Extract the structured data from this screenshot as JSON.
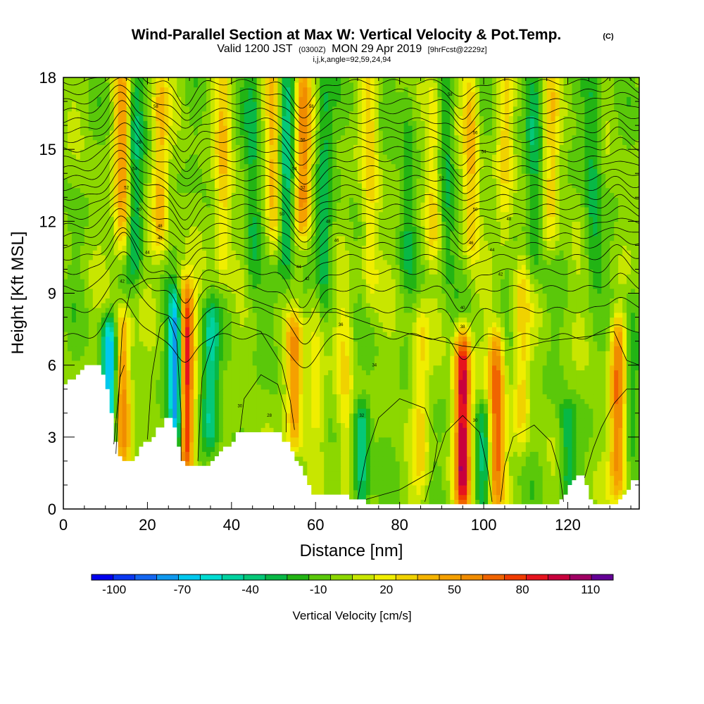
{
  "header": {
    "title": "Wind-Parallel Section at Max W: Vertical Velocity & Pot.Temp.",
    "copyright": "(C)",
    "valid_prefix": "Valid 1200 JST",
    "valid_utc": "(0300Z)",
    "valid_date": "MON 29 Apr 2019",
    "forecast": "[9hrFcst@2229z]",
    "grid_info": "i,j,k,angle=92,59,24,94"
  },
  "colors": {
    "terrain": "#ffffff",
    "contour": "#000000",
    "frame": "#000000"
  },
  "chart_data": {
    "type": "heatmap",
    "xlabel": "Distance [nm]",
    "ylabel": "Height [Kft MSL]",
    "xlim": [
      0,
      137
    ],
    "ylim": [
      0,
      18
    ],
    "x_ticks": [
      0,
      20,
      40,
      60,
      80,
      100,
      120
    ],
    "x_tick_labels": [
      "0",
      "20",
      "40",
      "60",
      "80",
      "100",
      "120"
    ],
    "y_ticks": [
      0,
      3,
      6,
      9,
      12,
      15,
      18
    ],
    "y_tick_labels": [
      "0",
      "3",
      "6",
      "9",
      "12",
      "15",
      "18"
    ],
    "colorbar": {
      "label": "Vertical Velocity [cm/s]",
      "levels": [
        -110,
        -100,
        -90,
        -80,
        -70,
        -60,
        -50,
        -40,
        -30,
        -20,
        -10,
        0,
        10,
        20,
        30,
        40,
        50,
        60,
        70,
        80,
        90,
        100,
        110,
        120
      ],
      "colors": [
        "#0000ee",
        "#0a37f0",
        "#1466f0",
        "#0f98ee",
        "#00c8ee",
        "#00dcd2",
        "#00d2a0",
        "#05c878",
        "#08b846",
        "#22b414",
        "#5ac80a",
        "#8cd700",
        "#c8e600",
        "#f0ee00",
        "#f0d200",
        "#f5b400",
        "#f5a000",
        "#f08c00",
        "#f06400",
        "#f03c00",
        "#e6141e",
        "#c8003c",
        "#a00064",
        "#640096"
      ],
      "tick_values": [
        -100,
        -70,
        -40,
        -10,
        20,
        50,
        80,
        110
      ],
      "tick_labels": [
        "-100",
        "-70",
        "-40",
        "-10",
        "20",
        "50",
        "80",
        "110"
      ]
    },
    "field": {
      "background_cm_s": 3,
      "features": [
        {
          "x": 11.0,
          "z_top": 7.5,
          "z_bot": 2.5,
          "w": -80
        },
        {
          "x": 14.0,
          "z_top": 7.8,
          "z_bot": 2.2,
          "w": 65
        },
        {
          "x": 14.0,
          "z_top": 18.0,
          "z_bot": 11.0,
          "w": 55
        },
        {
          "x": 17.0,
          "z_top": 18.0,
          "z_bot": 10.0,
          "w": -35
        },
        {
          "x": 23.0,
          "z_top": 18.0,
          "z_bot": 11.0,
          "w": 40
        },
        {
          "x": 27.0,
          "z_top": 8.5,
          "z_bot": 2.5,
          "w": -100
        },
        {
          "x": 29.0,
          "z_top": 9.0,
          "z_bot": 1.8,
          "w": 110
        },
        {
          "x": 35.0,
          "z_top": 8.0,
          "z_bot": 3.0,
          "w": -45
        },
        {
          "x": 38.0,
          "z_top": 18.0,
          "z_bot": 10.0,
          "w": 35
        },
        {
          "x": 45.0,
          "z_top": 18.0,
          "z_bot": 9.0,
          "w": -25
        },
        {
          "x": 50.0,
          "z_top": 18.0,
          "z_bot": 11.0,
          "w": 40
        },
        {
          "x": 53.0,
          "z_top": 18.0,
          "z_bot": 10.0,
          "w": -40
        },
        {
          "x": 55.0,
          "z_top": 7.5,
          "z_bot": 3.0,
          "w": 55
        },
        {
          "x": 57.0,
          "z_top": 18.0,
          "z_bot": 12.0,
          "w": 65
        },
        {
          "x": 60.0,
          "z_top": 9.0,
          "z_bot": 3.5,
          "w": 25
        },
        {
          "x": 62.0,
          "z_top": 18.0,
          "z_bot": 9.0,
          "w": -30
        },
        {
          "x": 67.0,
          "z_top": 8.0,
          "z_bot": 1.0,
          "w": 25
        },
        {
          "x": 71.0,
          "z_top": 4.0,
          "z_bot": 0.3,
          "w": -45
        },
        {
          "x": 73.0,
          "z_top": 18.0,
          "z_bot": 9.0,
          "w": 30
        },
        {
          "x": 82.0,
          "z_top": 18.0,
          "z_bot": 10.0,
          "w": -20
        },
        {
          "x": 85.0,
          "z_top": 8.0,
          "z_bot": 1.0,
          "w": 30
        },
        {
          "x": 88.0,
          "z_top": 18.0,
          "z_bot": 11.0,
          "w": 30
        },
        {
          "x": 91.0,
          "z_top": 18.0,
          "z_bot": 10.0,
          "w": -25
        },
        {
          "x": 95.0,
          "z_top": 7.0,
          "z_bot": 0.5,
          "w": 105
        },
        {
          "x": 97.0,
          "z_top": 18.0,
          "z_bot": 11.0,
          "w": 40
        },
        {
          "x": 100.0,
          "z_top": 4.0,
          "z_bot": 0.5,
          "w": -30
        },
        {
          "x": 103.0,
          "z_top": 7.0,
          "z_bot": 0.5,
          "w": 75
        },
        {
          "x": 105.0,
          "z_top": 18.0,
          "z_bot": 11.0,
          "w": 25
        },
        {
          "x": 109.0,
          "z_top": 10.0,
          "z_bot": 3.0,
          "w": 30
        },
        {
          "x": 112.0,
          "z_top": 18.0,
          "z_bot": 10.0,
          "w": -25
        },
        {
          "x": 116.0,
          "z_top": 18.0,
          "z_bot": 11.0,
          "w": 30
        },
        {
          "x": 120.0,
          "z_top": 4.0,
          "z_bot": 1.0,
          "w": -30
        },
        {
          "x": 126.0,
          "z_top": 18.0,
          "z_bot": 10.0,
          "w": -25
        },
        {
          "x": 132.0,
          "z_top": 7.5,
          "z_bot": 1.0,
          "w": 70
        },
        {
          "x": 135.0,
          "z_top": 9.0,
          "z_bot": 3.0,
          "w": -25
        }
      ]
    },
    "terrain_profile": [
      [
        0,
        5.2
      ],
      [
        2,
        5.4
      ],
      [
        5,
        5.9
      ],
      [
        9,
        5.9
      ],
      [
        10,
        5.2
      ],
      [
        11,
        4.8
      ],
      [
        12,
        3.3
      ],
      [
        13,
        2.4
      ],
      [
        14,
        2.0
      ],
      [
        17,
        2.0
      ],
      [
        18,
        2.2
      ],
      [
        19,
        2.8
      ],
      [
        20,
        3.0
      ],
      [
        21,
        2.8
      ],
      [
        22,
        3.3
      ],
      [
        24,
        3.5
      ],
      [
        25,
        3.9
      ],
      [
        27,
        3.2
      ],
      [
        28,
        2.0
      ],
      [
        30,
        1.8
      ],
      [
        31,
        1.6
      ],
      [
        32,
        1.9
      ],
      [
        35,
        1.9
      ],
      [
        37,
        2.2
      ],
      [
        40,
        2.8
      ],
      [
        42,
        3.2
      ],
      [
        45,
        3.3
      ],
      [
        51,
        3.3
      ],
      [
        52,
        3.0
      ],
      [
        54,
        2.6
      ],
      [
        56,
        1.9
      ],
      [
        58,
        1.2
      ],
      [
        59,
        0.8
      ],
      [
        60,
        0.6
      ],
      [
        62,
        0.5
      ],
      [
        68,
        0.5
      ],
      [
        70,
        0.4
      ],
      [
        72,
        0.3
      ],
      [
        118,
        0.3
      ],
      [
        119,
        0.5
      ],
      [
        120,
        0.9
      ],
      [
        122,
        1.3
      ],
      [
        124,
        1.3
      ],
      [
        125,
        0.6
      ],
      [
        126,
        0.3
      ],
      [
        130,
        0.3
      ],
      [
        132,
        0.3
      ],
      [
        133,
        0.6
      ],
      [
        136,
        1.2
      ],
      [
        137,
        1.2
      ]
    ],
    "theta_contours": {
      "level_heights_kft": [
        7.2,
        8.3,
        9.2,
        9.9,
        10.5,
        11.0,
        11.4,
        11.8,
        12.2,
        12.6,
        13.0,
        13.4,
        13.8,
        14.2,
        14.6,
        15.0,
        15.4,
        15.8,
        16.2,
        16.6,
        17.0,
        17.4,
        17.8
      ],
      "ripples": [
        {
          "x": 14,
          "amp": 1.6,
          "width": 4
        },
        {
          "x": 29,
          "amp": -1.2,
          "width": 3
        },
        {
          "x": 57,
          "amp": -1.4,
          "width": 4
        },
        {
          "x": 95,
          "amp": -0.9,
          "width": 3
        },
        {
          "x": 132,
          "amp": 0.6,
          "width": 3
        }
      ],
      "low_contours": [
        [
          [
            12.5,
            2.3
          ],
          [
            14,
            7.5
          ],
          [
            16,
            9.2
          ],
          [
            20,
            9.6
          ],
          [
            30,
            9.7
          ],
          [
            38,
            9.4
          ],
          [
            44,
            8.8
          ],
          [
            50,
            8.4
          ],
          [
            56,
            8.2
          ],
          [
            65,
            8.2
          ],
          [
            75,
            7.6
          ],
          [
            85,
            7.2
          ],
          [
            95,
            6.8
          ],
          [
            105,
            6.6
          ],
          [
            115,
            7.0
          ],
          [
            125,
            7.2
          ],
          [
            131,
            7.4
          ],
          [
            134,
            6.2
          ],
          [
            137,
            6.0
          ]
        ],
        [
          [
            12,
            2.7
          ],
          [
            13.5,
            5.5
          ],
          [
            14.5,
            6.0
          ]
        ],
        [
          [
            20,
            2.9
          ],
          [
            21,
            5.5
          ],
          [
            23,
            7.6
          ],
          [
            25,
            8.0
          ],
          [
            27,
            7.0
          ],
          [
            28,
            4.0
          ],
          [
            28,
            2.0
          ]
        ],
        [
          [
            32,
            2.0
          ],
          [
            33,
            5.5
          ],
          [
            36,
            7.2
          ],
          [
            40,
            7.8
          ],
          [
            47,
            7.4
          ],
          [
            52,
            6.0
          ],
          [
            54,
            4.5
          ],
          [
            55,
            3.3
          ]
        ],
        [
          [
            42,
            3.2
          ],
          [
            43,
            4.6
          ],
          [
            47,
            5.6
          ],
          [
            51,
            5.2
          ],
          [
            53,
            4.0
          ],
          [
            53,
            3.2
          ]
        ],
        [
          [
            70,
            0.4
          ],
          [
            72,
            2.2
          ],
          [
            75,
            3.8
          ],
          [
            80,
            4.6
          ],
          [
            86,
            4.2
          ],
          [
            89,
            2.8
          ],
          [
            88,
            1.6
          ],
          [
            80,
            0.8
          ],
          [
            72,
            0.4
          ]
        ],
        [
          [
            86,
            0.3
          ],
          [
            88,
            1.6
          ],
          [
            91,
            3.2
          ],
          [
            95,
            3.9
          ],
          [
            99,
            3.2
          ],
          [
            101,
            1.6
          ],
          [
            102,
            0.3
          ]
        ],
        [
          [
            104,
            0.3
          ],
          [
            105,
            1.8
          ],
          [
            107,
            3.0
          ],
          [
            112,
            3.5
          ],
          [
            116,
            2.8
          ],
          [
            118,
            1.6
          ],
          [
            119,
            0.3
          ]
        ],
        [
          [
            124,
            1.3
          ],
          [
            126,
            2.5
          ],
          [
            128,
            3.4
          ],
          [
            131,
            4.4
          ],
          [
            134,
            5.0
          ],
          [
            137,
            5.0
          ]
        ]
      ]
    },
    "contour_labels": [
      {
        "x": 22,
        "z": 16.8,
        "text": "58"
      },
      {
        "x": 18,
        "z": 15.3,
        "text": "56"
      },
      {
        "x": 17,
        "z": 14.2,
        "text": "54"
      },
      {
        "x": 15,
        "z": 13.4,
        "text": "52"
      },
      {
        "x": 18,
        "z": 12.5,
        "text": "50"
      },
      {
        "x": 23,
        "z": 11.8,
        "text": "48"
      },
      {
        "x": 23,
        "z": 11.3,
        "text": "46"
      },
      {
        "x": 20,
        "z": 10.7,
        "text": "44"
      },
      {
        "x": 14,
        "z": 9.5,
        "text": "42"
      },
      {
        "x": 59,
        "z": 16.8,
        "text": "58"
      },
      {
        "x": 57,
        "z": 15.4,
        "text": "56"
      },
      {
        "x": 55,
        "z": 14.2,
        "text": "54"
      },
      {
        "x": 57,
        "z": 13.4,
        "text": "52"
      },
      {
        "x": 52,
        "z": 12.3,
        "text": "50"
      },
      {
        "x": 63,
        "z": 12.0,
        "text": "48"
      },
      {
        "x": 65,
        "z": 11.2,
        "text": "46"
      },
      {
        "x": 56,
        "z": 10.1,
        "text": "44"
      },
      {
        "x": 58,
        "z": 9.6,
        "text": "42"
      },
      {
        "x": 92,
        "z": 17.3,
        "text": "58"
      },
      {
        "x": 98,
        "z": 15.7,
        "text": "56"
      },
      {
        "x": 100,
        "z": 14.9,
        "text": "54"
      },
      {
        "x": 90,
        "z": 13.8,
        "text": "52"
      },
      {
        "x": 98,
        "z": 12.5,
        "text": "50"
      },
      {
        "x": 106,
        "z": 12.1,
        "text": "48"
      },
      {
        "x": 97,
        "z": 11.1,
        "text": "46"
      },
      {
        "x": 102,
        "z": 10.8,
        "text": "44"
      },
      {
        "x": 104,
        "z": 9.8,
        "text": "42"
      },
      {
        "x": 95,
        "z": 8.4,
        "text": "40"
      },
      {
        "x": 95,
        "z": 7.6,
        "text": "38"
      },
      {
        "x": 66,
        "z": 7.7,
        "text": "36"
      },
      {
        "x": 74,
        "z": 6.0,
        "text": "34"
      },
      {
        "x": 71,
        "z": 3.9,
        "text": "32"
      },
      {
        "x": 42,
        "z": 4.3,
        "text": "30"
      },
      {
        "x": 49,
        "z": 3.9,
        "text": "28"
      },
      {
        "x": 98,
        "z": 3.7,
        "text": "30"
      }
    ]
  }
}
